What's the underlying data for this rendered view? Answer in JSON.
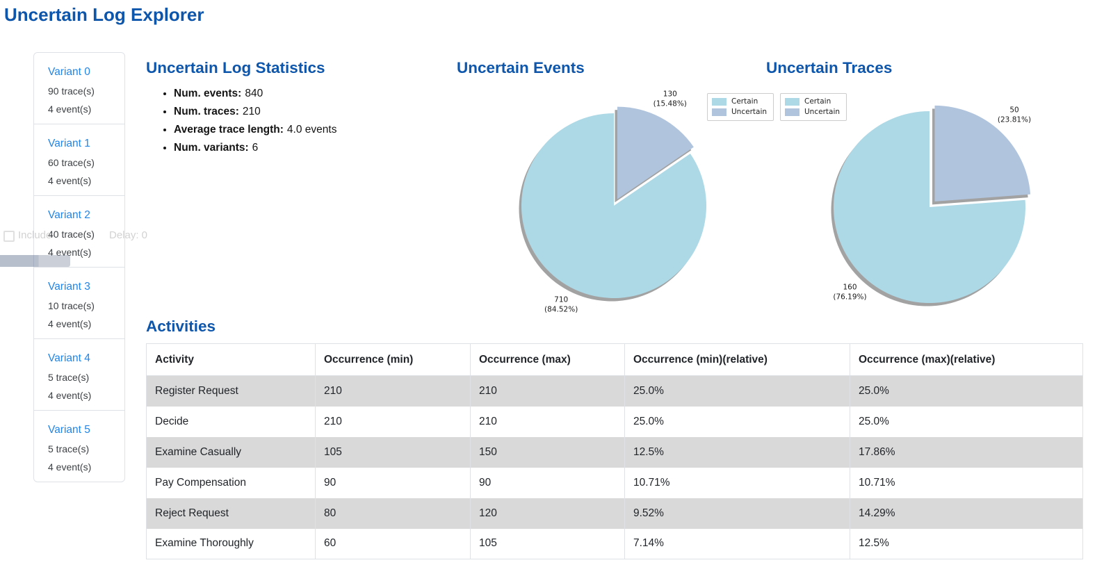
{
  "page": {
    "title": "Uncertain Log Explorer"
  },
  "colors": {
    "heading_blue": "#0d56ac",
    "link_blue": "#2185e8",
    "table_stripe": "#d9d9d9",
    "pie_certain": "#add8e6",
    "pie_uncertain": "#b0c4de",
    "pie_shadow": "#a2a2a2"
  },
  "sidebar": {
    "variants": [
      {
        "label": "Variant 0",
        "traces": "90 trace(s)",
        "events": "4 event(s)"
      },
      {
        "label": "Variant 1",
        "traces": "60 trace(s)",
        "events": "4 event(s)"
      },
      {
        "label": "Variant 2",
        "traces": "40 trace(s)",
        "events": "4 event(s)"
      },
      {
        "label": "Variant 3",
        "traces": "10 trace(s)",
        "events": "4 event(s)"
      },
      {
        "label": "Variant 4",
        "traces": "5 trace(s)",
        "events": "4 event(s)"
      },
      {
        "label": "Variant 5",
        "traces": "5 trace(s)",
        "events": "4 event(s)"
      }
    ]
  },
  "ghost_overlay": {
    "left_fragment": "Include",
    "right_fragment": "Delay: 0"
  },
  "statistics": {
    "title": "Uncertain Log Statistics",
    "items": [
      {
        "label": "Num. events:",
        "value": "840"
      },
      {
        "label": "Num. traces:",
        "value": "210"
      },
      {
        "label": "Average trace length:",
        "value": "4.0 events"
      },
      {
        "label": "Num. variants:",
        "value": "6"
      }
    ]
  },
  "chart_data": [
    {
      "type": "pie",
      "title": "Uncertain Events",
      "start_angle": 90,
      "counterclock": true,
      "shadow": true,
      "legend_position": "upper right",
      "slices": [
        {
          "label": "Certain",
          "value": 710,
          "pct": "84.52%",
          "color": "#add8e6",
          "explode": 0
        },
        {
          "label": "Uncertain",
          "value": 130,
          "pct": "15.48%",
          "color": "#b0c4de",
          "explode": 0.08
        }
      ]
    },
    {
      "type": "pie",
      "title": "Uncertain Traces",
      "start_angle": 90,
      "counterclock": true,
      "shadow": true,
      "legend_position": "upper left",
      "slices": [
        {
          "label": "Certain",
          "value": 160,
          "pct": "76.19%",
          "color": "#add8e6",
          "explode": 0
        },
        {
          "label": "Uncertain",
          "value": 50,
          "pct": "23.81%",
          "color": "#b0c4de",
          "explode": 0.08
        }
      ]
    }
  ],
  "activities": {
    "title": "Activities",
    "columns": [
      "Activity",
      "Occurrence (min)",
      "Occurrence (max)",
      "Occurrence (min)(relative)",
      "Occurrence (max)(relative)"
    ],
    "rows": [
      [
        "Register Request",
        "210",
        "210",
        "25.0%",
        "25.0%"
      ],
      [
        "Decide",
        "210",
        "210",
        "25.0%",
        "25.0%"
      ],
      [
        "Examine Casually",
        "105",
        "150",
        "12.5%",
        "17.86%"
      ],
      [
        "Pay Compensation",
        "90",
        "90",
        "10.71%",
        "10.71%"
      ],
      [
        "Reject Request",
        "80",
        "120",
        "9.52%",
        "14.29%"
      ],
      [
        "Examine Thoroughly",
        "60",
        "105",
        "7.14%",
        "12.5%"
      ]
    ]
  }
}
